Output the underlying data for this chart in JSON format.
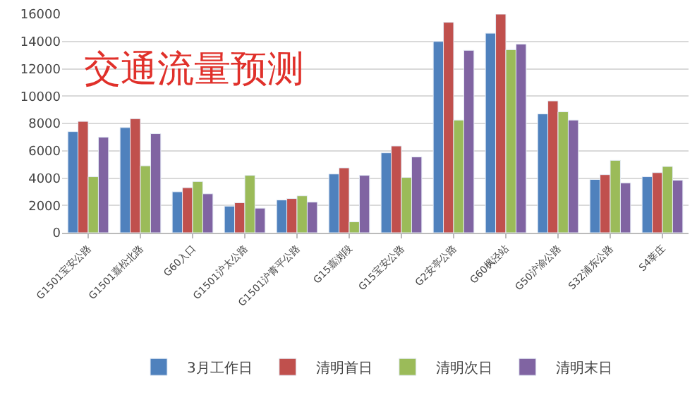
{
  "chart_data": {
    "type": "bar",
    "title": "交通流量预测",
    "categories": [
      "G1501宝安公路",
      "G1501嘉松北路",
      "G60入口",
      "G1501沪太公路",
      "G1501沪青平公路",
      "G15嘉浏段",
      "G15宝安公路",
      "G2安亭公路",
      "G60枫泾站",
      "G50沪渝公路",
      "S32浦东公路",
      "S4莘庄"
    ],
    "series": [
      {
        "name": "3月工作日",
        "color": "#4f81bd",
        "values": [
          7400,
          7700,
          3000,
          1950,
          2400,
          4300,
          5850,
          14000,
          14600,
          8700,
          3900,
          4100
        ]
      },
      {
        "name": "清明首日",
        "color": "#c0504d",
        "values": [
          8150,
          8350,
          3300,
          2200,
          2500,
          4750,
          6350,
          15400,
          16000,
          9650,
          4250,
          4400
        ]
      },
      {
        "name": "清明次日",
        "color": "#9bbb59",
        "values": [
          4100,
          4900,
          3750,
          4200,
          2700,
          800,
          4050,
          8250,
          13400,
          8850,
          5300,
          4850
        ]
      },
      {
        "name": "清明末日",
        "color": "#8064a2",
        "values": [
          7000,
          7250,
          2850,
          1800,
          2250,
          4200,
          5550,
          13350,
          13800,
          8250,
          3650,
          3850
        ]
      }
    ],
    "ylim": [
      0,
      16000
    ],
    "yticks": [
      0,
      2000,
      4000,
      6000,
      8000,
      10000,
      12000,
      14000,
      16000
    ],
    "grid": "y",
    "legend": "bottom"
  }
}
